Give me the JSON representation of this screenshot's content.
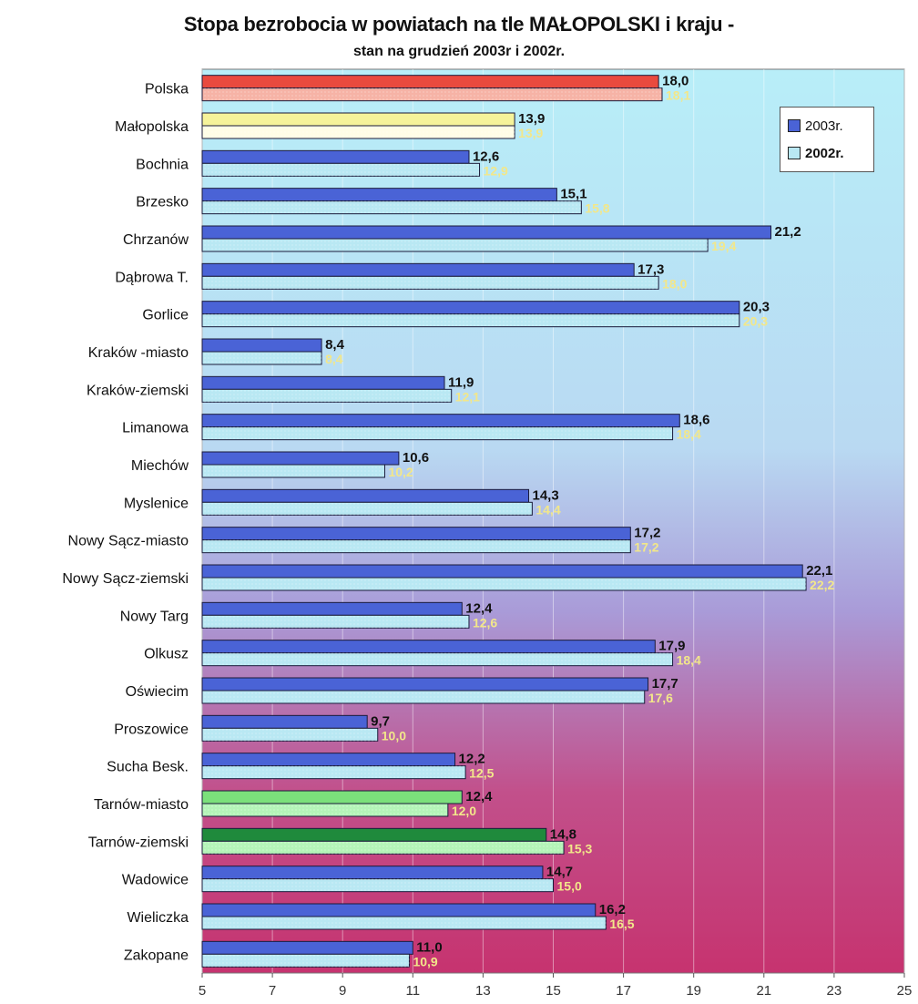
{
  "chart_data": {
    "type": "bar",
    "orientation": "horizontal",
    "title": "Stopa bezrobocia w powiatach na tle MAŁOPOLSKI i  kraju -",
    "subtitle": "stan na grudzień 2003r i  2002r.",
    "xlim": [
      5,
      25
    ],
    "xticks": [
      5,
      7,
      9,
      11,
      13,
      15,
      17,
      19,
      21,
      23,
      25
    ],
    "grid": "vertical",
    "legend_position": "top-right",
    "categories": [
      "Polska",
      "Małopolska",
      "Bochnia",
      "Brzesko",
      "Chrzanów",
      "Dąbrowa T.",
      "Gorlice",
      "Kraków -miasto",
      "Kraków-ziemski",
      "Limanowa",
      "Miechów",
      "Myslenice",
      "Nowy Sącz-miasto",
      "Nowy Sącz-ziemski",
      "Nowy Targ",
      "Olkusz",
      "Oświecim",
      "Proszowice",
      "Sucha Besk.",
      "Tarnów-miasto",
      "Tarnów-ziemski",
      "Wadowice",
      "Wieliczka",
      "Zakopane"
    ],
    "series": [
      {
        "name": "2003r.",
        "values": [
          18.0,
          13.9,
          12.6,
          15.1,
          21.2,
          17.3,
          20.3,
          8.4,
          11.9,
          18.6,
          10.6,
          14.3,
          17.2,
          22.1,
          12.4,
          17.9,
          17.7,
          9.7,
          12.2,
          12.4,
          14.8,
          14.7,
          16.2,
          11.0
        ],
        "labels": [
          "18,0",
          "13,9",
          "12,6",
          "15,1",
          "21,2",
          "17,3",
          "20,3",
          "8,4",
          "11,9",
          "18,6",
          "10,6",
          "14,3",
          "17,2",
          "22,1",
          "12,4",
          "17,9",
          "17,7",
          "9,7",
          "12,2",
          "12,4",
          "14,8",
          "14,7",
          "16,2",
          "11,0"
        ]
      },
      {
        "name": "2002r.",
        "values": [
          18.1,
          13.9,
          12.9,
          15.8,
          19.4,
          18.0,
          20.3,
          8.4,
          12.1,
          18.4,
          10.2,
          14.4,
          17.2,
          22.2,
          12.6,
          18.4,
          17.6,
          10.0,
          12.5,
          12.0,
          15.3,
          15.0,
          16.5,
          10.9
        ],
        "labels": [
          "18,1",
          "13,9",
          "12,9",
          "15,8",
          "19,4",
          "18,0",
          "20,3",
          "8,4",
          "12,1",
          "18,4",
          "10,2",
          "14,4",
          "17,2",
          "22,2",
          "12,6",
          "18,4",
          "17,6",
          "10,0",
          "12,5",
          "12,0",
          "15,3",
          "15,0",
          "16,5",
          "10,9"
        ]
      }
    ],
    "colors": {
      "bar_2003_default": "#4a63d6",
      "bar_2002_default": "#b9e8f3",
      "bar_polska_2003": "#e94a3e",
      "bar_polska_2002": "#f6b3a6",
      "bar_malopolska_2003": "#f6f39a",
      "bar_malopolska_2002": "#fffde6",
      "bar_tarnow_2003": "#7be07b",
      "bar_tarnow_2002": "#b4f4b8",
      "bar_tarnow_ziemski_2003": "#1f8a3c",
      "label_2002": "#f2e78a",
      "label_2003": "#111111",
      "bg_top": "#b8eef8",
      "bg_mid": "#a99bd8",
      "bg_bottom": "#c6336f"
    }
  }
}
